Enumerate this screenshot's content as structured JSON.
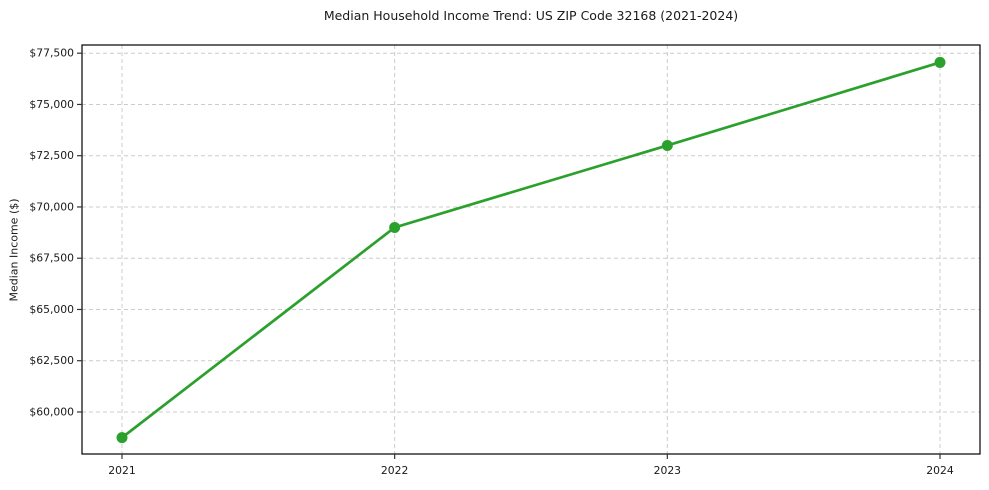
{
  "chart_data": {
    "type": "line",
    "title": "Median Household Income Trend: US ZIP Code 32168 (2021-2024)",
    "xlabel": "",
    "ylabel": "Median Income ($)",
    "x": [
      2021,
      2022,
      2023,
      2024
    ],
    "x_tick_labels": [
      "2021",
      "2022",
      "2023",
      "2024"
    ],
    "series": [
      {
        "name": "median-household-income",
        "values": [
          58750,
          69000,
          73000,
          77050
        ],
        "color": "#2ca02c"
      }
    ],
    "y_ticks": [
      60000,
      62500,
      65000,
      67500,
      70000,
      72500,
      75000,
      77500
    ],
    "y_tick_labels": [
      "$60,000",
      "$62,500",
      "$65,000",
      "$67,500",
      "$70,000",
      "$72,500",
      "$75,000",
      "$77,500"
    ],
    "ylim": [
      57950,
      77900
    ],
    "grid": true,
    "grid_color": "#cccccc",
    "line_width": 2.7,
    "marker": "circle",
    "marker_radius": 5.5,
    "legend": "none",
    "background_color": "#ffffff"
  }
}
